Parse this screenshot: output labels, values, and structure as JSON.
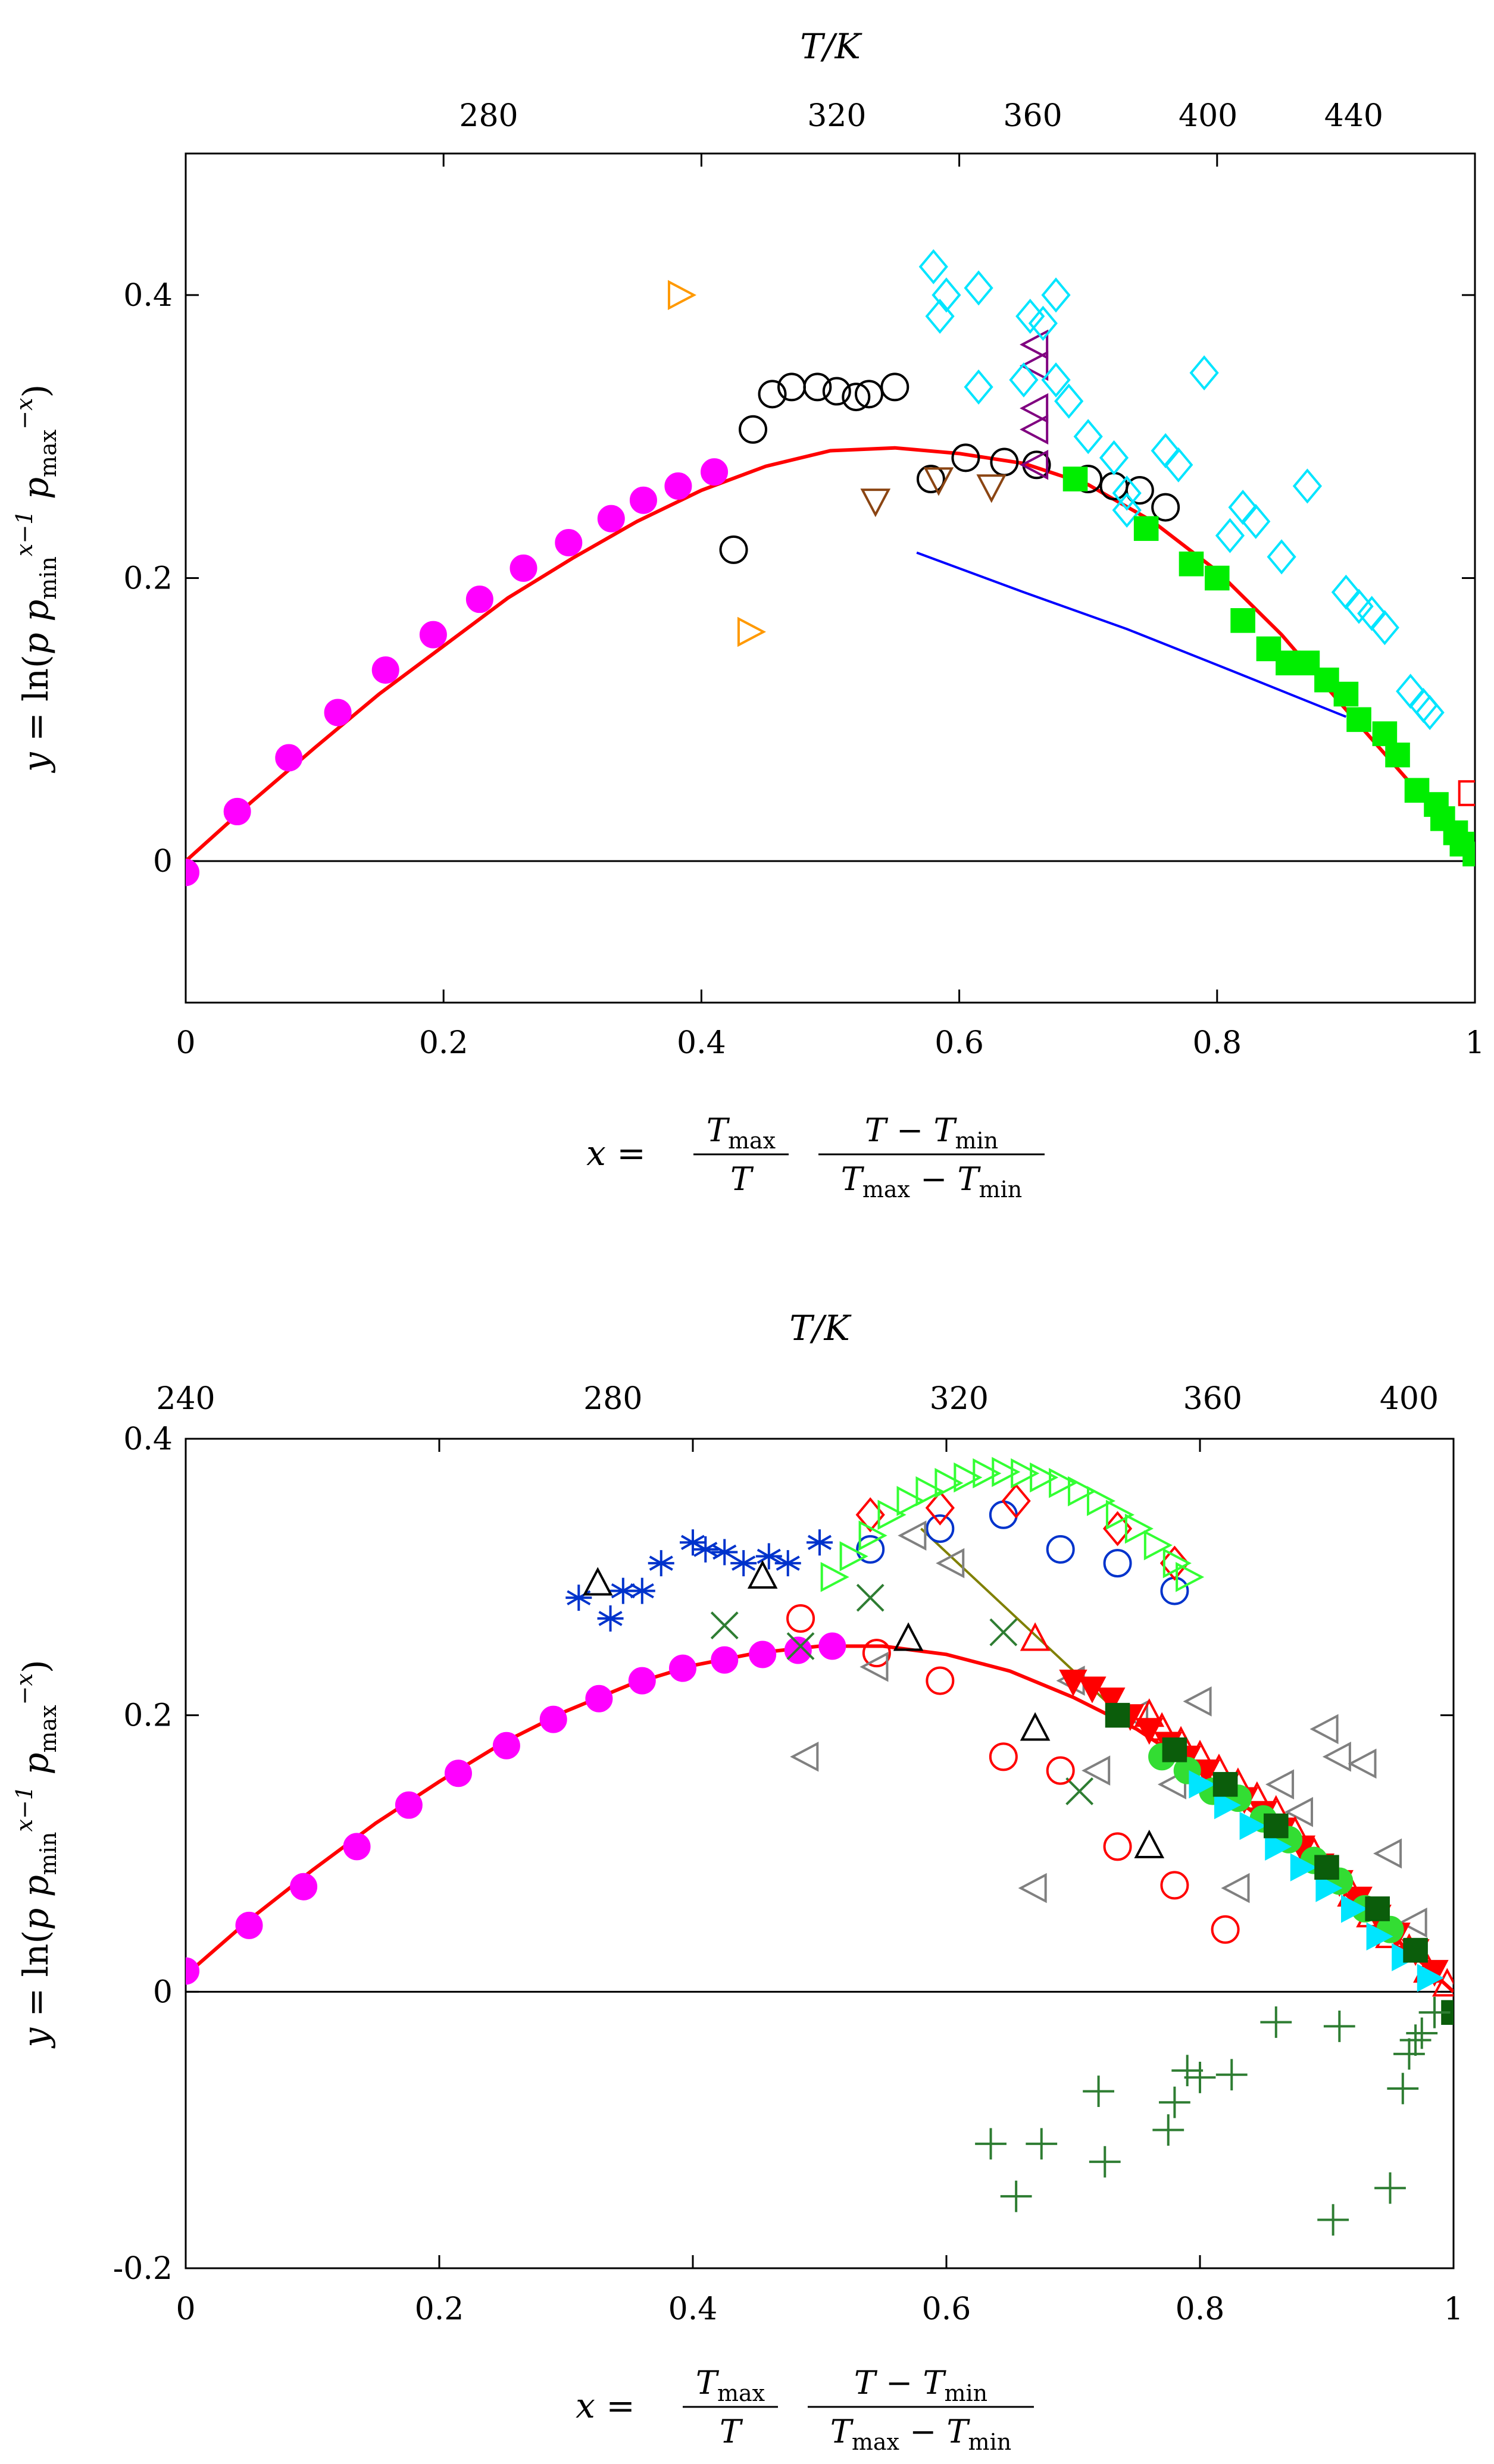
{
  "chart_data": [
    {
      "type": "scatter",
      "title": "",
      "xlabel": "x = (T_max / T) (T − T_min) / (T_max − T_min)",
      "ylabel": "y = ln(p p_min^(x−1) p_max^(−x))",
      "toplabel": "T/K",
      "xlim": [
        0,
        1
      ],
      "ylim": [
        -0.1,
        0.5
      ],
      "xticks": [
        "0",
        "0.2",
        "0.4",
        "0.6",
        "0.8",
        "1"
      ],
      "yticks": [
        "0",
        "0.2",
        "0.4"
      ],
      "top_ticks": [
        {
          "x": 0.235,
          "label": "280"
        },
        {
          "x": 0.505,
          "label": "320"
        },
        {
          "x": 0.657,
          "label": "360"
        },
        {
          "x": 0.793,
          "label": "400"
        },
        {
          "x": 0.906,
          "label": "440"
        }
      ],
      "curves": [
        {
          "name": "fit",
          "color": "#ff0000",
          "x": [
            0,
            0.05,
            0.1,
            0.15,
            0.2,
            0.25,
            0.3,
            0.35,
            0.4,
            0.45,
            0.5,
            0.55,
            0.6,
            0.65,
            0.7,
            0.75,
            0.8,
            0.85,
            0.9,
            0.95,
            1.0
          ],
          "y": [
            0,
            0.041,
            0.08,
            0.118,
            0.152,
            0.186,
            0.214,
            0.24,
            0.262,
            0.279,
            0.29,
            0.292,
            0.288,
            0.281,
            0.266,
            0.24,
            0.205,
            0.16,
            0.107,
            0.055,
            0.005
          ]
        },
        {
          "name": "model",
          "color": "#0000ff",
          "x": [
            0.567,
            0.65,
            0.73,
            0.81,
            0.9
          ],
          "y": [
            0.218,
            0.19,
            0.164,
            0.135,
            0.102
          ]
        }
      ],
      "series": [
        {
          "name": "magenta",
          "marker": "circle-filled",
          "color": "#ff00ff",
          "x": [
            0,
            0.04,
            0.08,
            0.118,
            0.155,
            0.192,
            0.228,
            0.262,
            0.297,
            0.33,
            0.355,
            0.382,
            0.41
          ],
          "y": [
            -0.008,
            0.035,
            0.073,
            0.105,
            0.135,
            0.16,
            0.185,
            0.207,
            0.225,
            0.242,
            0.255,
            0.265,
            0.275
          ]
        },
        {
          "name": "black-circles",
          "marker": "circle-open",
          "color": "#000000",
          "x": [
            0.425,
            0.44,
            0.455,
            0.47,
            0.49,
            0.505,
            0.52,
            0.53,
            0.55,
            0.578,
            0.605,
            0.635,
            0.66,
            0.7,
            0.72,
            0.74,
            0.76
          ],
          "y": [
            0.22,
            0.305,
            0.33,
            0.335,
            0.335,
            0.332,
            0.328,
            0.33,
            0.335,
            0.27,
            0.285,
            0.282,
            0.28,
            0.27,
            0.265,
            0.262,
            0.25
          ]
        },
        {
          "name": "orange-triangles",
          "marker": "tri-right-open",
          "color": "#ff9900",
          "x": [
            0.383,
            0.437
          ],
          "y": [
            0.4,
            0.162
          ]
        },
        {
          "name": "brown-triangles",
          "marker": "tri-down-open",
          "color": "#8b4513",
          "x": [
            0.535,
            0.584,
            0.625
          ],
          "y": [
            0.255,
            0.27,
            0.265
          ]
        },
        {
          "name": "purple-triangles",
          "marker": "tri-left-open",
          "color": "#800080",
          "x": [
            0.66,
            0.66,
            0.66,
            0.66,
            0.66
          ],
          "y": [
            0.365,
            0.35,
            0.32,
            0.305,
            0.28
          ]
        },
        {
          "name": "cyan-diamonds",
          "marker": "diamond-open",
          "color": "#00e5ff",
          "x": [
            0.58,
            0.585,
            0.59,
            0.615,
            0.615,
            0.65,
            0.655,
            0.665,
            0.675,
            0.675,
            0.685,
            0.7,
            0.72,
            0.73,
            0.73,
            0.76,
            0.77,
            0.79,
            0.81,
            0.82,
            0.83,
            0.85,
            0.87,
            0.9,
            0.91,
            0.92,
            0.93,
            0.95,
            0.96,
            0.965
          ],
          "y": [
            0.42,
            0.385,
            0.4,
            0.405,
            0.335,
            0.34,
            0.385,
            0.38,
            0.34,
            0.4,
            0.325,
            0.3,
            0.285,
            0.26,
            0.248,
            0.29,
            0.28,
            0.345,
            0.23,
            0.25,
            0.24,
            0.215,
            0.265,
            0.19,
            0.18,
            0.175,
            0.165,
            0.12,
            0.11,
            0.105
          ]
        },
        {
          "name": "green-squares",
          "marker": "square-filled",
          "color": "#00ee00",
          "x": [
            0.69,
            0.745,
            0.78,
            0.8,
            0.82,
            0.84,
            0.855,
            0.87,
            0.885,
            0.9,
            0.91,
            0.93,
            0.94,
            0.955,
            0.97,
            0.975,
            0.985,
            0.99,
            1.0
          ],
          "y": [
            0.27,
            0.235,
            0.21,
            0.2,
            0.17,
            0.15,
            0.14,
            0.14,
            0.128,
            0.118,
            0.1,
            0.09,
            0.075,
            0.05,
            0.04,
            0.03,
            0.02,
            0.012,
            0.005
          ]
        },
        {
          "name": "red-square",
          "marker": "square-open",
          "color": "#ff0000",
          "x": [
            0.997
          ],
          "y": [
            0.048
          ]
        }
      ]
    },
    {
      "type": "scatter",
      "title": "",
      "xlabel": "x = (T_max / T) (T − T_min) / (T_max − T_min)",
      "ylabel": "y = ln(p p_min^(x−1) p_max^(−x))",
      "toplabel": "T/K",
      "xlim": [
        0,
        1
      ],
      "ylim": [
        -0.2,
        0.4
      ],
      "xticks": [
        "0",
        "0.2",
        "0.4",
        "0.6",
        "0.8",
        "1"
      ],
      "yticks": [
        "-0.2",
        "0",
        "0.2",
        "0.4"
      ],
      "top_ticks": [
        {
          "x": 0.0,
          "label": "240"
        },
        {
          "x": 0.337,
          "label": "280"
        },
        {
          "x": 0.61,
          "label": "320"
        },
        {
          "x": 0.81,
          "label": "360"
        },
        {
          "x": 0.965,
          "label": "400"
        }
      ],
      "curves": [
        {
          "name": "fit",
          "color": "#ff0000",
          "x": [
            0,
            0.05,
            0.1,
            0.15,
            0.2,
            0.25,
            0.3,
            0.35,
            0.4,
            0.45,
            0.5,
            0.55,
            0.6,
            0.65,
            0.7,
            0.75,
            0.8,
            0.85,
            0.9,
            0.95,
            1.0
          ],
          "y": [
            0.012,
            0.052,
            0.088,
            0.122,
            0.152,
            0.18,
            0.203,
            0.222,
            0.236,
            0.245,
            0.25,
            0.25,
            0.244,
            0.232,
            0.213,
            0.19,
            0.16,
            0.124,
            0.083,
            0.042,
            0
          ]
        },
        {
          "name": "olive-line",
          "color": "#808000",
          "x": [
            0.58,
            0.74
          ],
          "y": [
            0.335,
            0.198
          ]
        }
      ],
      "series": [
        {
          "name": "magenta",
          "marker": "circle-filled",
          "color": "#ff00ff",
          "x": [
            0,
            0.05,
            0.093,
            0.135,
            0.176,
            0.215,
            0.253,
            0.29,
            0.326,
            0.36,
            0.392,
            0.425,
            0.455,
            0.483,
            0.51
          ],
          "y": [
            0.015,
            0.048,
            0.076,
            0.105,
            0.135,
            0.158,
            0.178,
            0.197,
            0.212,
            0.225,
            0.234,
            0.24,
            0.244,
            0.247,
            0.25
          ]
        },
        {
          "name": "blue-stars",
          "marker": "asterisk",
          "color": "#0033cc",
          "x": [
            0.31,
            0.335,
            0.345,
            0.36,
            0.375,
            0.4,
            0.41,
            0.425,
            0.44,
            0.46,
            0.475,
            0.5
          ],
          "y": [
            0.285,
            0.27,
            0.29,
            0.29,
            0.31,
            0.325,
            0.32,
            0.318,
            0.31,
            0.315,
            0.31,
            0.325
          ]
        },
        {
          "name": "black-triangles",
          "marker": "tri-up-open",
          "color": "#000000",
          "x": [
            0.325,
            0.455,
            0.57,
            0.67,
            0.76
          ],
          "y": [
            0.295,
            0.3,
            0.255,
            0.19,
            0.105
          ]
        },
        {
          "name": "green-x",
          "marker": "cross",
          "color": "#2e7d32",
          "x": [
            0.425,
            0.485,
            0.54,
            0.645,
            0.705
          ],
          "y": [
            0.265,
            0.25,
            0.285,
            0.26,
            0.145
          ]
        },
        {
          "name": "blue-circles",
          "marker": "circle-open",
          "color": "#0033cc",
          "x": [
            0.54,
            0.595,
            0.645,
            0.69,
            0.735,
            0.78
          ],
          "y": [
            0.32,
            0.335,
            0.345,
            0.32,
            0.31,
            0.29
          ]
        },
        {
          "name": "red-diamonds",
          "marker": "diamond-open",
          "color": "#ff0000",
          "x": [
            0.54,
            0.595,
            0.655,
            0.735,
            0.78
          ],
          "y": [
            0.345,
            0.35,
            0.355,
            0.335,
            0.31
          ]
        },
        {
          "name": "red-circles",
          "marker": "circle-open",
          "color": "#ff0000",
          "x": [
            0.485,
            0.545,
            0.595,
            0.645,
            0.69,
            0.735,
            0.78,
            0.82
          ],
          "y": [
            0.27,
            0.245,
            0.225,
            0.17,
            0.16,
            0.105,
            0.077,
            0.045
          ]
        },
        {
          "name": "gray-triangles",
          "marker": "tri-left-open",
          "color": "#808080",
          "x": [
            0.49,
            0.545,
            0.575,
            0.605,
            0.67,
            0.7,
            0.72,
            0.75,
            0.78,
            0.8,
            0.83,
            0.865,
            0.88,
            0.9,
            0.91,
            0.93,
            0.95,
            0.97
          ],
          "y": [
            0.17,
            0.235,
            0.33,
            0.31,
            0.075,
            0.225,
            0.16,
            0.2,
            0.15,
            0.21,
            0.075,
            0.15,
            0.13,
            0.19,
            0.17,
            0.165,
            0.1,
            0.05
          ]
        },
        {
          "name": "lime-triangles",
          "marker": "tri-right-open",
          "color": "#33ff33",
          "x": [
            0.51,
            0.525,
            0.54,
            0.555,
            0.57,
            0.585,
            0.6,
            0.615,
            0.63,
            0.645,
            0.66,
            0.675,
            0.69,
            0.705,
            0.72,
            0.735,
            0.75,
            0.765,
            0.78,
            0.79
          ],
          "y": [
            0.3,
            0.315,
            0.33,
            0.345,
            0.355,
            0.362,
            0.368,
            0.372,
            0.375,
            0.376,
            0.375,
            0.372,
            0.368,
            0.362,
            0.355,
            0.345,
            0.335,
            0.323,
            0.31,
            0.3
          ]
        },
        {
          "name": "red-triangles-up",
          "marker": "tri-up-open",
          "color": "#ff0000",
          "x": [
            0.67,
            0.76,
            0.77,
            0.785,
            0.8,
            0.815,
            0.83,
            0.845,
            0.86,
            0.875,
            0.89,
            0.905,
            0.92,
            0.935,
            0.95,
            0.965,
            0.98,
            0.995
          ],
          "y": [
            0.255,
            0.2,
            0.19,
            0.18,
            0.17,
            0.16,
            0.15,
            0.14,
            0.13,
            0.115,
            0.1,
            0.085,
            0.07,
            0.055,
            0.04,
            0.03,
            0.015,
            0.005
          ]
        },
        {
          "name": "red-filled-down",
          "marker": "tri-down-filled",
          "color": "#ff0000",
          "x": [
            0.7,
            0.715,
            0.73,
            0.745,
            0.76,
            0.775,
            0.79,
            0.805,
            0.82,
            0.835,
            0.85,
            0.865,
            0.88,
            0.895,
            0.91,
            0.925,
            0.94,
            0.955,
            0.97,
            0.985
          ],
          "y": [
            0.225,
            0.22,
            0.212,
            0.2,
            0.19,
            0.18,
            0.17,
            0.16,
            0.15,
            0.14,
            0.13,
            0.118,
            0.105,
            0.092,
            0.08,
            0.068,
            0.055,
            0.042,
            0.03,
            0.015
          ]
        },
        {
          "name": "green-circles",
          "marker": "circle-filled",
          "color": "#33dd33",
          "x": [
            0.77,
            0.79,
            0.81,
            0.83,
            0.85,
            0.87,
            0.89,
            0.91,
            0.93,
            0.95
          ],
          "y": [
            0.17,
            0.16,
            0.145,
            0.14,
            0.125,
            0.11,
            0.095,
            0.08,
            0.06,
            0.045
          ]
        },
        {
          "name": "cyan-filled",
          "marker": "tri-right-filled",
          "color": "#00e5ff",
          "x": [
            0.8,
            0.82,
            0.84,
            0.86,
            0.88,
            0.9,
            0.92,
            0.94,
            0.96,
            0.98
          ],
          "y": [
            0.15,
            0.135,
            0.12,
            0.105,
            0.09,
            0.075,
            0.06,
            0.04,
            0.025,
            0.01
          ]
        },
        {
          "name": "darkgreen-squares",
          "marker": "square-filled",
          "color": "#0b5d0b",
          "x": [
            0.735,
            0.78,
            0.82,
            0.86,
            0.9,
            0.94,
            0.97,
            1.0
          ],
          "y": [
            0.2,
            0.175,
            0.15,
            0.12,
            0.09,
            0.06,
            0.03,
            -0.015
          ]
        },
        {
          "name": "green-plus",
          "marker": "plus",
          "color": "#2e7d32",
          "x": [
            0.635,
            0.655,
            0.675,
            0.72,
            0.725,
            0.775,
            0.78,
            0.79,
            0.8,
            0.825,
            0.86,
            0.905,
            0.91,
            0.95,
            0.96,
            0.965,
            0.97,
            0.975,
            0.985
          ],
          "y": [
            -0.11,
            -0.148,
            -0.11,
            -0.072,
            -0.123,
            -0.1,
            -0.08,
            -0.057,
            -0.062,
            -0.06,
            -0.022,
            -0.165,
            -0.025,
            -0.142,
            -0.07,
            -0.045,
            -0.035,
            -0.03,
            -0.015
          ]
        }
      ]
    }
  ]
}
